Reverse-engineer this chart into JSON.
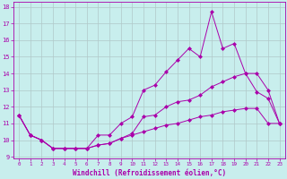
{
  "xlabel": "Windchill (Refroidissement éolien,°C)",
  "x_values": [
    0,
    1,
    2,
    3,
    4,
    5,
    6,
    7,
    8,
    9,
    10,
    11,
    12,
    13,
    14,
    15,
    16,
    17,
    18,
    19,
    20,
    21,
    22,
    23
  ],
  "line1": [
    11.5,
    10.3,
    10.0,
    9.5,
    9.5,
    9.5,
    9.5,
    9.7,
    9.8,
    10.1,
    10.3,
    10.5,
    10.7,
    10.9,
    11.0,
    11.2,
    11.4,
    11.5,
    11.7,
    11.8,
    11.9,
    11.9,
    11.0,
    11.0
  ],
  "line2": [
    11.5,
    10.3,
    10.0,
    9.5,
    9.5,
    9.5,
    9.5,
    9.7,
    9.8,
    10.1,
    10.4,
    11.4,
    11.5,
    12.0,
    12.3,
    12.4,
    12.7,
    13.2,
    13.5,
    13.8,
    14.0,
    14.0,
    13.0,
    11.0
  ],
  "line3": [
    11.5,
    10.3,
    10.0,
    9.5,
    9.5,
    9.5,
    9.5,
    10.3,
    10.3,
    11.0,
    11.4,
    13.0,
    13.3,
    14.1,
    14.8,
    15.5,
    15.0,
    17.7,
    15.5,
    15.8,
    14.0,
    12.9,
    12.5,
    11.0
  ],
  "line_color": "#aa00aa",
  "bg_color": "#c8eeed",
  "grid_color": "#b0c8c8",
  "marker": "D",
  "marker_size": 2,
  "ylim": [
    9,
    18
  ],
  "xlim": [
    -0.5,
    23.5
  ],
  "yticks": [
    9,
    10,
    11,
    12,
    13,
    14,
    15,
    16,
    17,
    18
  ],
  "xticks": [
    0,
    1,
    2,
    3,
    4,
    5,
    6,
    7,
    8,
    9,
    10,
    11,
    12,
    13,
    14,
    15,
    16,
    17,
    18,
    19,
    20,
    21,
    22,
    23
  ]
}
